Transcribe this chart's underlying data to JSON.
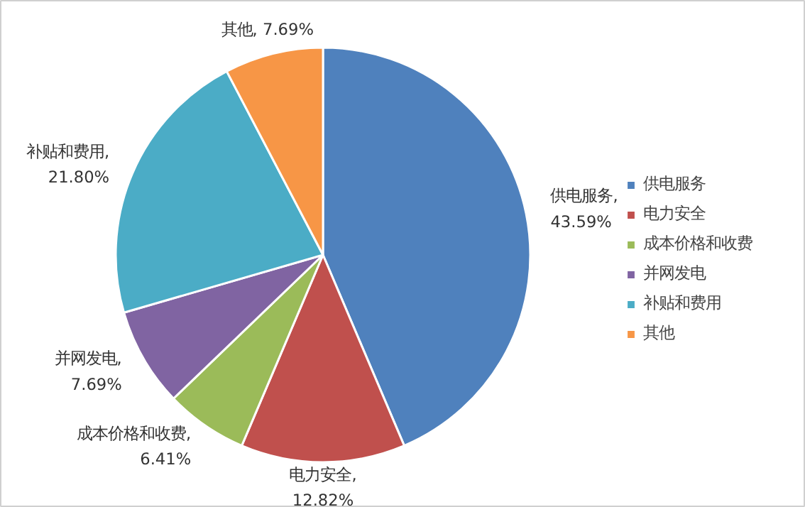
{
  "chart_data": {
    "type": "pie",
    "categories": [
      "供电服务",
      "电力安全",
      "成本价格和收费",
      "并网发电",
      "补贴和费用",
      "其他"
    ],
    "values": [
      43.59,
      12.82,
      6.41,
      7.69,
      21.8,
      7.69
    ],
    "colors": [
      "#4f81bd",
      "#c0504d",
      "#9bbb59",
      "#8064a2",
      "#4bacc6",
      "#f79646"
    ],
    "value_labels": [
      "供电服务,\n43.59%",
      "电力安全,\n12.82%",
      "成本价格和收费,\n6.41%",
      "并网发电,\n7.69%",
      "补贴和费用,\n21.80%",
      "其他, 7.69%"
    ],
    "legend": "right"
  }
}
